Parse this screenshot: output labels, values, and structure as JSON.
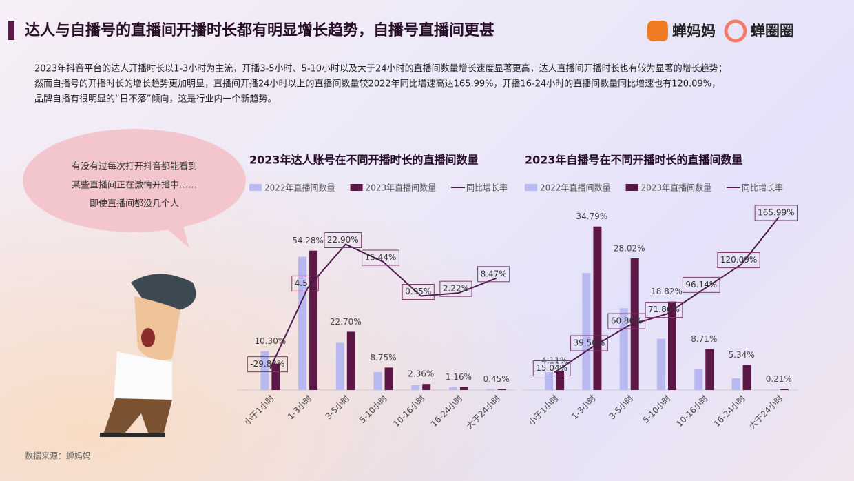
{
  "header": {
    "title": "达人与自播号的直播间开播时长都有明显增长趋势，自播号直播间更甚",
    "logos": [
      "蝉妈妈",
      "蝉圈圈"
    ]
  },
  "intro": [
    "2023年抖音平台的达人开播时长以1-3小时为主流，开播3-5小时、5-10小时以及大于24小时的直播间数量增长速度显著更高，达人直播间开播时长也有较为显著的增长趋势；",
    "然而自播号的开播时长的增长趋势更加明显，直播间开播24小时以上的直播间数量较2022年同比增速高达165.99%，开播16-24小时的直播间数量同比增速也有120.09%，",
    "品牌自播有很明显的“日不落”倾向，这是行业内一个新趋势。"
  ],
  "bubble": [
    "有没有过每次打开抖音都能看到",
    "某些直播间正在激情开播中……",
    "即使直播间都没几个人"
  ],
  "source": "数据来源：蝉妈妈",
  "chart_data": [
    {
      "type": "bar_line",
      "title": "2023年达人账号在不同开播时长的直播间数量",
      "categories": [
        "小于1小时",
        "1-3小时",
        "3-5小时",
        "5-10小时",
        "10-16小时",
        "16-24小时",
        "大于24小时"
      ],
      "ylim": [
        0,
        66
      ],
      "y2lim": [
        -39,
        33
      ],
      "series": [
        {
          "name": "2022年直播间数量",
          "color": "#b9b9f2",
          "values": [
            15.1,
            51.9,
            18.4,
            7.0,
            1.9,
            1.1,
            0.4
          ]
        },
        {
          "name": "2023年直播间数量",
          "color": "#5b1847",
          "values": [
            10.3,
            54.28,
            22.7,
            8.75,
            2.36,
            1.16,
            0.45
          ],
          "value_labels": [
            "10.30%",
            "54.28%",
            "22.70%",
            "8.75%",
            "2.36%",
            "1.16%",
            "0.45%"
          ]
        },
        {
          "name": "同比增长率",
          "color": "#4d1a4b",
          "axis": "y2",
          "values": [
            -29.83,
            4.5,
            22.9,
            15.44,
            0.95,
            2.22,
            8.47
          ],
          "value_labels": [
            "-29.83%",
            "4.5...",
            "22.90%",
            "15.44%",
            "0.95%",
            "2.22%",
            "8.47%"
          ]
        }
      ]
    },
    {
      "type": "bar_line",
      "title": "2023年自播号在不同开播时长的直播间数量",
      "categories": [
        "小于1小时",
        "1-3小时",
        "3-5小时",
        "5-10小时",
        "10-16小时",
        "16-24小时",
        "大于24小时"
      ],
      "ylim": [
        0,
        39
      ],
      "y2lim": [
        -2,
        176
      ],
      "series": [
        {
          "name": "2022年直播间数量",
          "color": "#b9b9f2",
          "values": [
            3.8,
            24.9,
            17.4,
            10.9,
            4.4,
            2.5,
            0.1
          ]
        },
        {
          "name": "2023年直播间数量",
          "color": "#5b1847",
          "values": [
            4.11,
            34.79,
            28.02,
            18.82,
            8.71,
            5.34,
            0.21
          ],
          "value_labels": [
            "4.11%",
            "34.79%",
            "28.02%",
            "18.82%",
            "8.71%",
            "5.34%",
            "0.21%"
          ]
        },
        {
          "name": "同比增长率",
          "color": "#4d1a4b",
          "axis": "y2",
          "values": [
            15.04,
            39.5,
            60.86,
            71.86,
            96.14,
            120.09,
            165.99
          ],
          "value_labels": [
            "15.04%",
            "39.50%",
            "60.86%",
            "71.86%",
            "96.14%",
            "120.09%",
            "165.99%"
          ]
        }
      ]
    }
  ]
}
